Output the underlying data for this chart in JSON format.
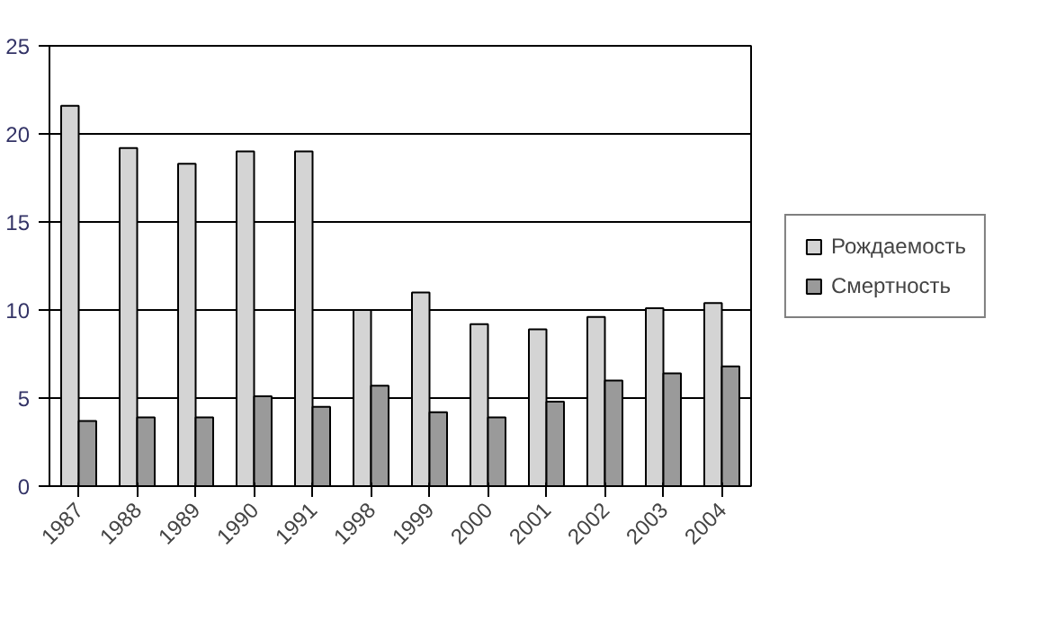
{
  "chart_data": {
    "type": "bar",
    "categories": [
      "1987",
      "1988",
      "1989",
      "1990",
      "1991",
      "1998",
      "1999",
      "2000",
      "2001",
      "2002",
      "2003",
      "2004"
    ],
    "series": [
      {
        "name": "Рождаемость",
        "color": "#d4d4d4",
        "values": [
          21.6,
          19.2,
          18.3,
          19.0,
          19.0,
          10.0,
          11.0,
          9.2,
          8.9,
          9.6,
          10.1,
          10.4
        ]
      },
      {
        "name": "Смертность",
        "color": "#9a9a9a",
        "values": [
          3.7,
          3.9,
          3.9,
          5.1,
          4.5,
          5.7,
          4.2,
          3.9,
          4.8,
          6.0,
          6.4,
          6.8
        ]
      }
    ],
    "ylim": [
      0,
      25
    ],
    "yticks": [
      0,
      5,
      10,
      15,
      20,
      25
    ],
    "grid": "y",
    "legend": "right"
  }
}
